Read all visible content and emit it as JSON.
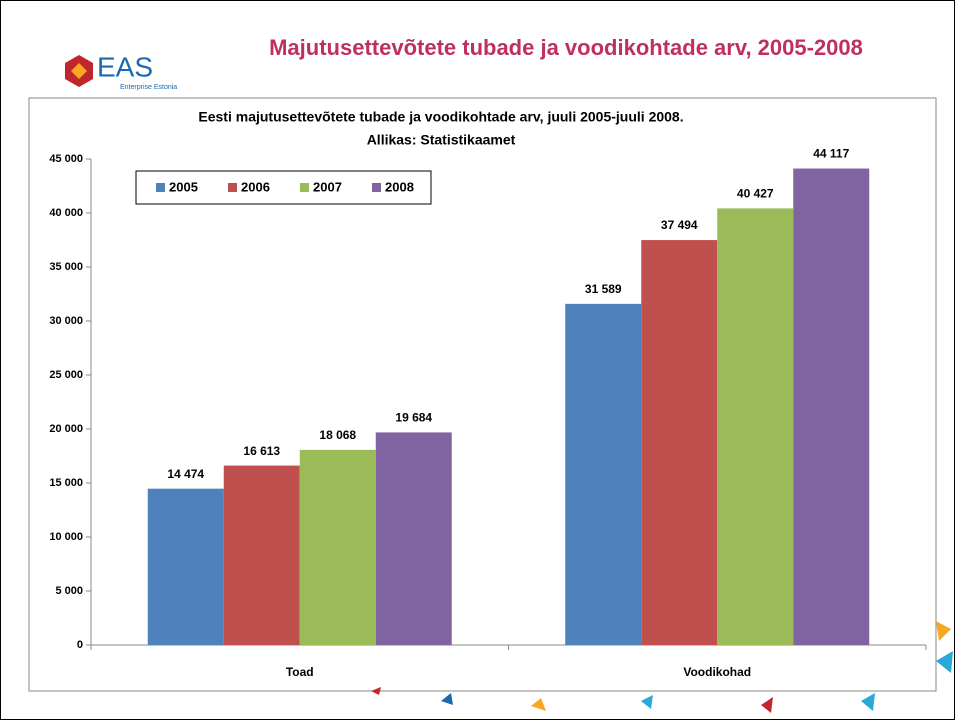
{
  "header": {
    "title": "Majutusettevõtete tubade ja voodikohtade arv, 2005-2008",
    "logo": "EAS",
    "logo_subtitle": "Enterprise Estonia"
  },
  "chart_data": {
    "type": "bar",
    "title": "Eesti majutusettevõtete tubade ja voodikohtade arv, juuli 2005-juuli 2008.",
    "subtitle": "Allikas: Statistikaamet",
    "categories": [
      "Toad",
      "Voodikohad"
    ],
    "series": [
      {
        "name": "2005",
        "color": "#4f81bd",
        "values": [
          14474,
          31589
        ],
        "value_labels": [
          "14 474",
          "31 589"
        ]
      },
      {
        "name": "2006",
        "color": "#c0504d",
        "values": [
          16613,
          37494
        ],
        "value_labels": [
          "16 613",
          "37 494"
        ]
      },
      {
        "name": "2007",
        "color": "#9bbb59",
        "values": [
          18068,
          40427
        ],
        "value_labels": [
          "18 068",
          "40 427"
        ]
      },
      {
        "name": "2008",
        "color": "#8064a2",
        "values": [
          19684,
          44117
        ],
        "value_labels": [
          "19 684",
          "44 117"
        ]
      }
    ],
    "ylim": [
      0,
      45000
    ],
    "yticks": [
      0,
      {
        "value": 5000,
        "label": "5 000"
      },
      {
        "value": 10000,
        "label": "10 000"
      },
      {
        "value": 15000,
        "label": "15 000"
      },
      {
        "value": 20000,
        "label": "20 000"
      },
      {
        "value": 25000,
        "label": "25 000"
      },
      {
        "value": 30000,
        "label": "30 000"
      },
      {
        "value": 35000,
        "label": "35 000"
      },
      {
        "value": 40000,
        "label": "40 000"
      },
      {
        "value": 45000,
        "label": "45 000"
      }
    ],
    "grid": false,
    "legend": "upper left"
  }
}
